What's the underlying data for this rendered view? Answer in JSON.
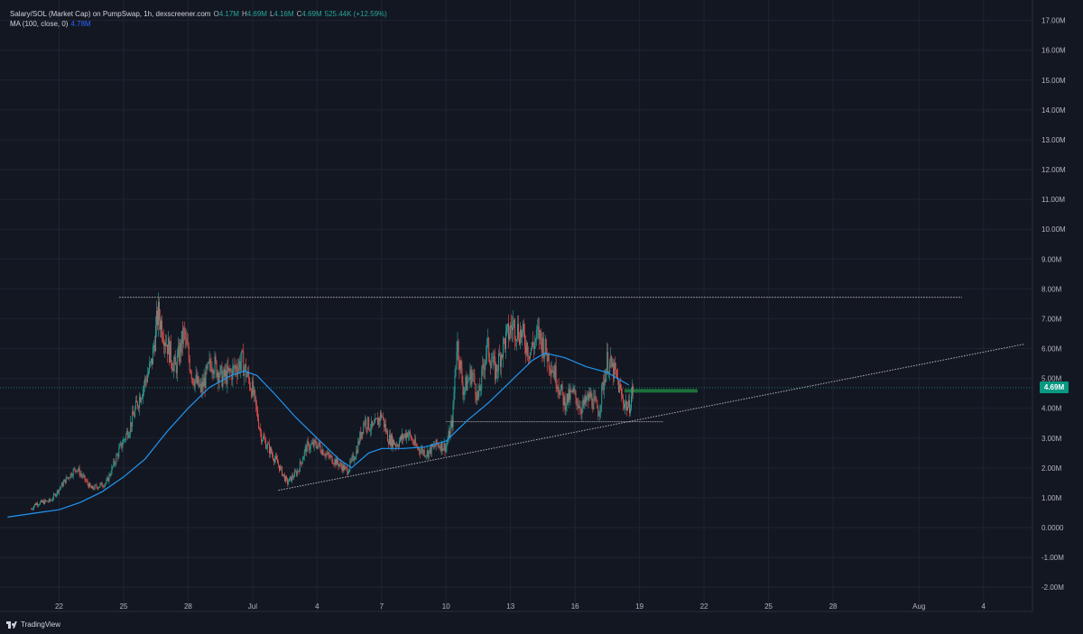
{
  "legend": {
    "title": "Salary/SOL (Market Cap) on PumpSwap, 1h, dexscreener.com",
    "o_label": "O",
    "o_value": "4.17M",
    "h_label": "H",
    "h_value": "4.69M",
    "l_label": "L",
    "l_value": "4.16M",
    "c_label": "C",
    "c_value": "4.69M",
    "change": "525.44K (+12.59%)",
    "ma_label": "MA (100, close, 0)",
    "ma_value": "4.78M"
  },
  "branding": {
    "logo_text": "TradingView"
  },
  "colors": {
    "background": "#131722",
    "grid": "#1f2430",
    "up": "#26a69a",
    "down": "#ef5350",
    "ma": "#2196f3",
    "trendline": "#c7c7c7",
    "price_tag": "#089981"
  },
  "chart_data": {
    "type": "candlestick",
    "title": "Salary/SOL (Market Cap) on PumpSwap, 1h, dexscreener.com",
    "y_tick_labels": [
      "17.00M",
      "16.00M",
      "15.00M",
      "14.00M",
      "13.00M",
      "12.00M",
      "11.00M",
      "10.00M",
      "9.00M",
      "8.00M",
      "7.00M",
      "6.00M",
      "5.00M",
      "4.00M",
      "3.00M",
      "2.00M",
      "1.00M",
      "0.0000",
      "-1.00M",
      "-2.00M"
    ],
    "y_tick_values": [
      17,
      16,
      15,
      14,
      13,
      12,
      11,
      10,
      9,
      8,
      7,
      6,
      5,
      4,
      3,
      2,
      1,
      0,
      -1,
      -2
    ],
    "ylim": [
      -2.3,
      17.4
    ],
    "y_unit": "M",
    "x_tick_labels": [
      "22",
      "25",
      "28",
      "Jul",
      "4",
      "7",
      "10",
      "13",
      "16",
      "19",
      "22",
      "25",
      "28",
      "Aug",
      "4"
    ],
    "x_tick_days": [
      22,
      25,
      28,
      31,
      34,
      37,
      40,
      43,
      46,
      49,
      52,
      55,
      58,
      62,
      65
    ],
    "x_note": "x values are day numbers counted from June 1 (Jul 1 = 31, Aug 1 = 62)",
    "xlim": [
      19.6,
      66.9
    ],
    "current_price_label": "4.69M",
    "current_price": 4.69,
    "close_path": [
      [
        19.6,
        0.35
      ],
      [
        20.4,
        0.35
      ],
      [
        20.9,
        0.8
      ],
      [
        21.6,
        0.9
      ],
      [
        22.3,
        1.6
      ],
      [
        22.8,
        2.0
      ],
      [
        23.5,
        1.3
      ],
      [
        24.2,
        1.5
      ],
      [
        24.8,
        2.6
      ],
      [
        25.3,
        3.4
      ],
      [
        25.8,
        4.5
      ],
      [
        26.3,
        5.5
      ],
      [
        26.6,
        7.2
      ],
      [
        27.0,
        6.2
      ],
      [
        27.4,
        5.3
      ],
      [
        27.8,
        6.5
      ],
      [
        28.2,
        5.1
      ],
      [
        28.6,
        4.6
      ],
      [
        29.1,
        5.6
      ],
      [
        29.6,
        5.0
      ],
      [
        30.0,
        5.2
      ],
      [
        30.5,
        5.6
      ],
      [
        31.0,
        4.6
      ],
      [
        31.4,
        3.1
      ],
      [
        31.8,
        2.6
      ],
      [
        32.2,
        2.1
      ],
      [
        32.6,
        1.5
      ],
      [
        33.1,
        1.9
      ],
      [
        33.5,
        2.7
      ],
      [
        34.0,
        2.8
      ],
      [
        34.5,
        2.4
      ],
      [
        34.9,
        2.2
      ],
      [
        35.4,
        1.9
      ],
      [
        35.8,
        2.5
      ],
      [
        36.2,
        3.6
      ],
      [
        36.6,
        3.3
      ],
      [
        37.0,
        3.8
      ],
      [
        37.3,
        3.0
      ],
      [
        37.7,
        2.8
      ],
      [
        38.2,
        3.2
      ],
      [
        38.6,
        2.7
      ],
      [
        39.1,
        2.5
      ],
      [
        39.6,
        2.8
      ],
      [
        40.0,
        2.7
      ],
      [
        40.3,
        3.6
      ],
      [
        40.5,
        6.3
      ],
      [
        40.8,
        4.6
      ],
      [
        41.2,
        5.2
      ],
      [
        41.5,
        4.3
      ],
      [
        41.9,
        6.1
      ],
      [
        42.3,
        5.2
      ],
      [
        42.7,
        6.2
      ],
      [
        43.1,
        6.8
      ],
      [
        43.5,
        6.5
      ],
      [
        43.9,
        5.9
      ],
      [
        44.3,
        6.5
      ],
      [
        44.7,
        5.8
      ],
      [
        45.1,
        5.1
      ],
      [
        45.5,
        4.2
      ],
      [
        45.9,
        4.5
      ],
      [
        46.3,
        4.0
      ],
      [
        46.7,
        4.4
      ],
      [
        47.1,
        3.9
      ],
      [
        47.5,
        5.6
      ],
      [
        47.9,
        5.1
      ],
      [
        48.2,
        4.3
      ],
      [
        48.5,
        4.0
      ],
      [
        48.7,
        4.69
      ]
    ],
    "ma_path": [
      [
        19.6,
        0.35
      ],
      [
        21.0,
        0.5
      ],
      [
        22.0,
        0.6
      ],
      [
        23.0,
        0.85
      ],
      [
        24.0,
        1.2
      ],
      [
        25.0,
        1.7
      ],
      [
        26.0,
        2.3
      ],
      [
        27.0,
        3.2
      ],
      [
        28.0,
        4.0
      ],
      [
        29.0,
        4.7
      ],
      [
        30.0,
        5.1
      ],
      [
        30.6,
        5.25
      ],
      [
        31.2,
        5.1
      ],
      [
        32.0,
        4.5
      ],
      [
        33.0,
        3.7
      ],
      [
        34.0,
        3.0
      ],
      [
        35.0,
        2.3
      ],
      [
        35.6,
        2.0
      ],
      [
        36.4,
        2.5
      ],
      [
        37.0,
        2.65
      ],
      [
        38.0,
        2.65
      ],
      [
        39.0,
        2.7
      ],
      [
        40.0,
        2.9
      ],
      [
        41.0,
        3.6
      ],
      [
        42.0,
        4.2
      ],
      [
        43.0,
        4.9
      ],
      [
        44.0,
        5.6
      ],
      [
        44.6,
        5.85
      ],
      [
        45.5,
        5.7
      ],
      [
        46.5,
        5.4
      ],
      [
        47.5,
        5.2
      ],
      [
        48.5,
        4.78
      ]
    ],
    "resistance_line": {
      "x": [
        24.8,
        64.0
      ],
      "y": [
        7.72,
        7.72
      ]
    },
    "support_line": {
      "x": [
        40.0,
        50.1
      ],
      "y": [
        3.55,
        3.55
      ]
    },
    "ascending_trendline": {
      "x": [
        32.2,
        66.9
      ],
      "y": [
        1.25,
        6.15
      ]
    },
    "current_level_box": {
      "x": [
        48.3,
        51.7
      ],
      "y": [
        4.55,
        4.6
      ]
    },
    "grid": true
  }
}
